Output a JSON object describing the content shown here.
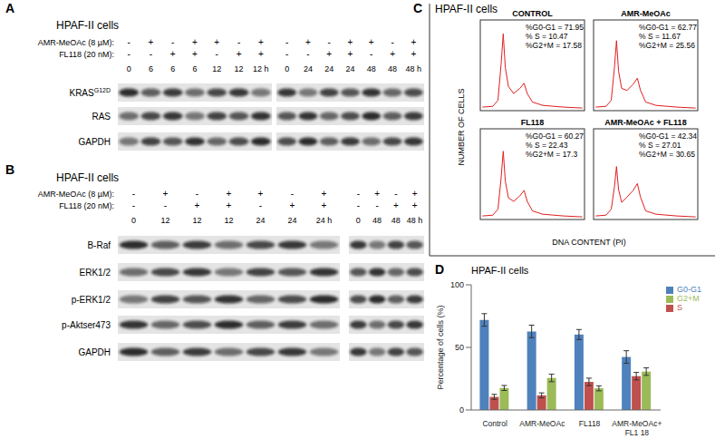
{
  "panel_A": {
    "label": "A",
    "title": "HPAF-II cells",
    "treatments": [
      "AMR-MeOAc (8 µM):",
      "FL118 (20 nM):"
    ],
    "groups": [
      {
        "signs": [
          [
            "-",
            "+",
            "-",
            "+",
            "+",
            "-",
            "+"
          ],
          [
            "-",
            "-",
            "+",
            "+",
            "-",
            "+",
            "+"
          ]
        ],
        "times": [
          "0",
          "6",
          "6",
          "6",
          "12",
          "12",
          "12 h"
        ]
      },
      {
        "signs": [
          [
            "-",
            "+",
            "-",
            "+",
            "+",
            "-",
            "+"
          ],
          [
            "-",
            "-",
            "+",
            "+",
            "-",
            "+",
            "+"
          ]
        ],
        "times": [
          "0",
          "24",
          "24",
          "24",
          "48",
          "48",
          "48 h"
        ]
      }
    ],
    "blots": [
      {
        "text": "KRAS",
        "sup": "G12D"
      },
      {
        "text": "RAS"
      },
      {
        "text": "GAPDH"
      }
    ]
  },
  "panel_B": {
    "label": "B",
    "title": "HPAF-II cells",
    "treatments": [
      "AMR-MeOAc (8 µM):",
      "FL118 (20 nM):"
    ],
    "groups": [
      {
        "signs": [
          [
            "-",
            "+",
            "-",
            "+",
            "+",
            "-",
            "+"
          ],
          [
            "-",
            "-",
            "+",
            "+",
            "-",
            "+",
            "+"
          ]
        ],
        "times": [
          "0",
          "12",
          "12",
          "12",
          "24",
          "24",
          "24 h"
        ]
      },
      {
        "signs": [
          [
            "-",
            "+",
            "-",
            "+"
          ],
          [
            "-",
            "-",
            "+",
            "+"
          ]
        ],
        "times": [
          "0",
          "48",
          "48",
          "48 h"
        ]
      }
    ],
    "blots": [
      {
        "text": "B-Raf"
      },
      {
        "text": "ERK1/2"
      },
      {
        "text": "p-ERK1/2"
      },
      {
        "text": "p-Aktser473"
      },
      {
        "text": "GAPDH"
      }
    ]
  },
  "panel_C": {
    "label": "C",
    "title": "HPAF-II cells",
    "y_label": "NUMBER OF CELLS",
    "x_label": "DNA CONTENT (PI)",
    "histograms": [
      {
        "title": "CONTROL",
        "stats": [
          "%G0-G1 = 71.95",
          "% S = 10.47",
          "%G2+M = 17.58"
        ]
      },
      {
        "title": "AMR-MeOAc",
        "stats": [
          "%G0-G1 = 62.77",
          "% S = 11.67",
          "%G2+M = 25.56"
        ]
      },
      {
        "title": "FL118",
        "stats": [
          "%G0-G1 = 60.27",
          "% S = 22.43",
          "%G2+M = 17.3"
        ]
      },
      {
        "title": "AMR-MeOAc + FL118",
        "stats": [
          "%G0-G1 = 42.34",
          "% S = 27.01",
          "%G2+M = 30.65"
        ]
      }
    ]
  },
  "panel_D_label": "D",
  "chart_data": {
    "type": "bar",
    "title": "HPAF-II cells",
    "y_label": "Percentage of cells (%)",
    "categories": [
      "Control",
      "AMR-MeOAc",
      "FL118",
      "AMR-MeOAc+ FL1 18"
    ],
    "series": [
      {
        "name": "G0-G1",
        "color": "#4F81BD",
        "values": [
          71.95,
          62.77,
          60.27,
          42.34
        ],
        "errors": [
          5,
          5,
          4,
          5
        ]
      },
      {
        "name": "S",
        "color": "#C0504D",
        "values": [
          10.47,
          11.67,
          22.43,
          27.01
        ],
        "errors": [
          2,
          2,
          3,
          3
        ]
      },
      {
        "name": "G2+M",
        "color": "#9BBB59",
        "values": [
          17.58,
          25.56,
          17.3,
          30.65
        ],
        "errors": [
          2,
          3,
          2,
          3
        ]
      }
    ],
    "ylim": [
      0,
      100
    ],
    "yticks": [
      0,
      50,
      100
    ],
    "grid": false,
    "legend": "right"
  }
}
